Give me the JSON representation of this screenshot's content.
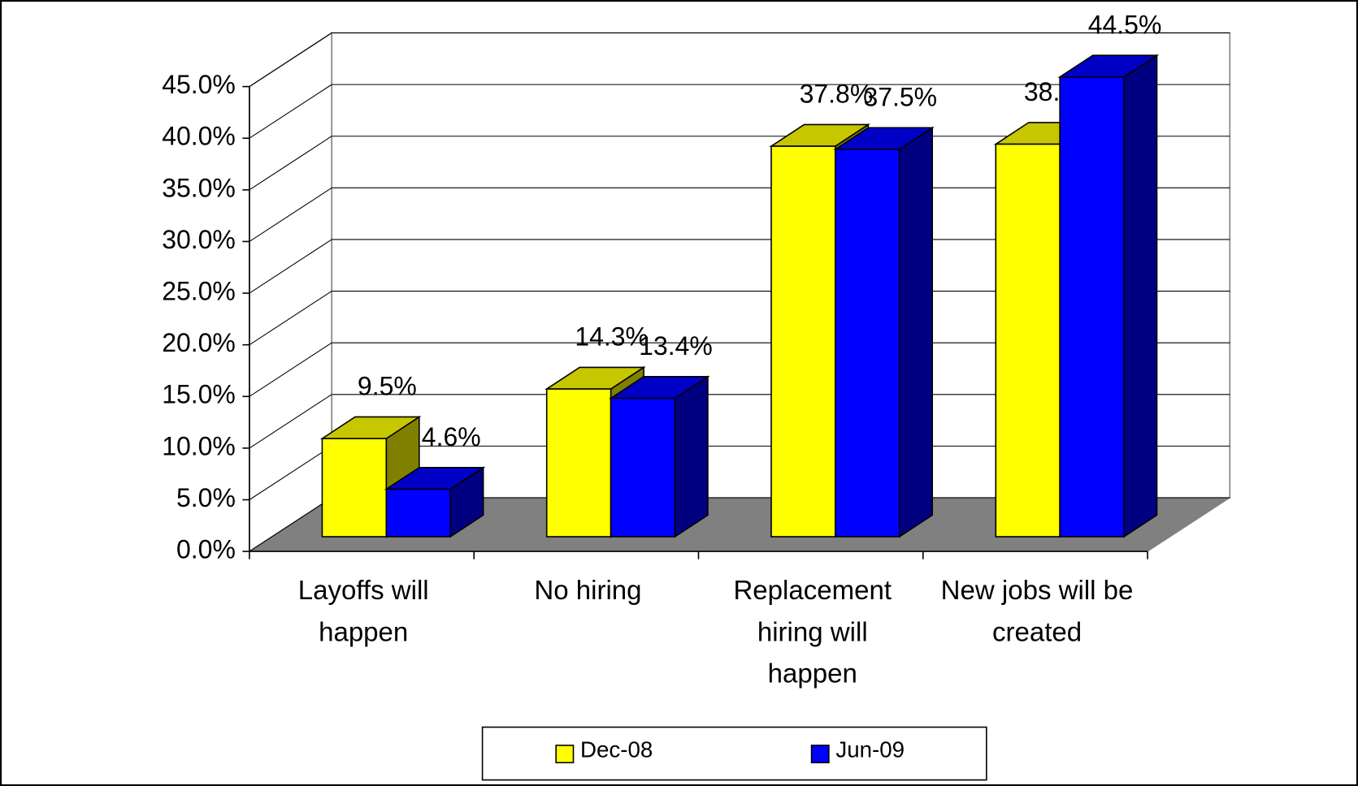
{
  "chart_data": {
    "type": "bar3d",
    "categories": [
      "Layoffs will\nhappen",
      "No hiring",
      "Replacement\nhiring will\nhappen",
      "New jobs will be\ncreated"
    ],
    "series": [
      {
        "name": "Dec-08",
        "color": "#ffff00",
        "values": [
          9.5,
          14.3,
          37.8,
          38.0
        ],
        "value_labels": [
          "9.5%",
          "14.3%",
          "37.8%",
          "38.0%"
        ]
      },
      {
        "name": "Jun-09",
        "color": "#0000ff",
        "values": [
          4.6,
          13.4,
          37.5,
          44.5
        ],
        "value_labels": [
          "4.6%",
          "13.4%",
          "37.5%",
          "44.5%"
        ]
      }
    ],
    "ylim": [
      0,
      45
    ],
    "yticks": [
      {
        "value": 0,
        "label": "0.0%"
      },
      {
        "value": 5,
        "label": "5.0%"
      },
      {
        "value": 10,
        "label": "10.0%"
      },
      {
        "value": 15,
        "label": "15.0%"
      },
      {
        "value": 20,
        "label": "20.0%"
      },
      {
        "value": 25,
        "label": "25.0%"
      },
      {
        "value": 30,
        "label": "30.0%"
      },
      {
        "value": 35,
        "label": "35.0%"
      },
      {
        "value": 40,
        "label": "40.0%"
      },
      {
        "value": 45,
        "label": "45.0%"
      }
    ],
    "grid": true,
    "legend": "bottom"
  }
}
